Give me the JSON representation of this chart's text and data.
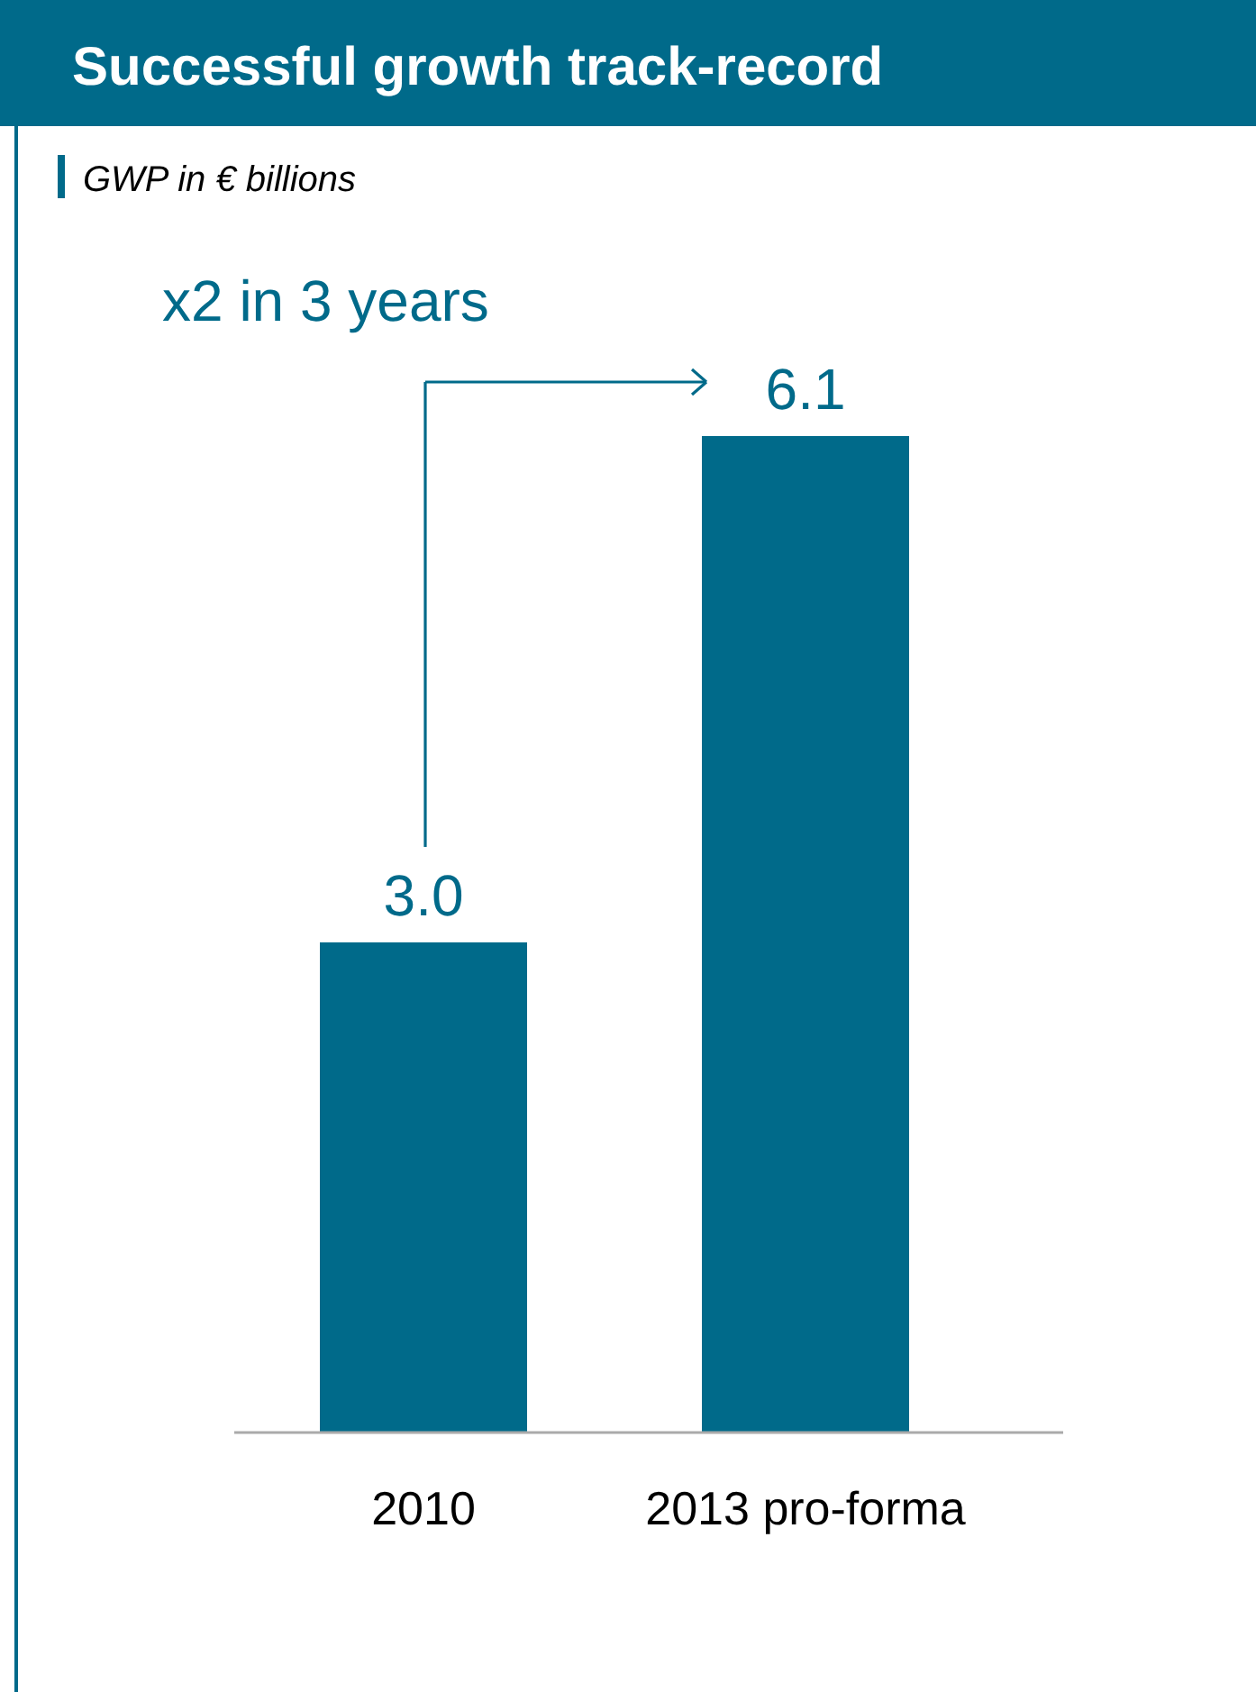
{
  "chart_data": {
    "type": "bar",
    "title": "Successful growth track-record",
    "subtitle": "GWP in € billions",
    "categories": [
      "2010",
      "2013 pro-forma"
    ],
    "values": [
      3.0,
      6.1
    ],
    "value_labels": [
      "3.0",
      "6.1"
    ],
    "data_labels": true,
    "color": "#006a8a",
    "annotations": [
      "x2 in 3 years"
    ]
  }
}
